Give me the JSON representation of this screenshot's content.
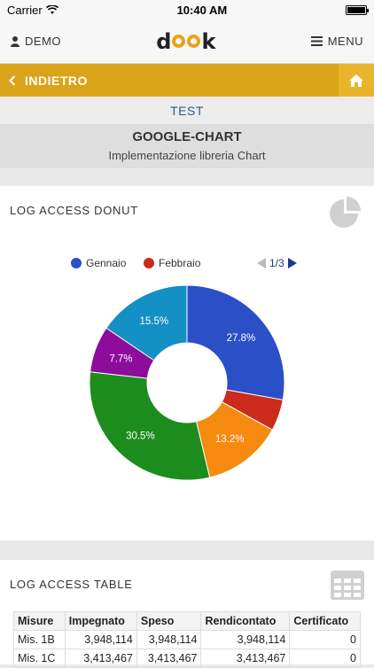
{
  "status_bar": {
    "carrier": "Carrier",
    "time": "10:40 AM"
  },
  "navbar": {
    "user_label": "DEMO",
    "logo_text": "dook",
    "menu_label": "MENU"
  },
  "backbar": {
    "back_label": "INDIETRO"
  },
  "section": {
    "label": "TEST"
  },
  "page": {
    "title": "GOOGLE-CHART",
    "subtitle": "Implementazione libreria Chart"
  },
  "donut_card": {
    "title": "LOG ACCESS DONUT",
    "pager": "1/3"
  },
  "chart_data": {
    "type": "pie",
    "donut": true,
    "legend_position": "top",
    "legend": [
      {
        "name": "Gennaio",
        "color": "#2a4fc7"
      },
      {
        "name": "Febbraio",
        "color": "#cc2a1a"
      }
    ],
    "slices": [
      {
        "value": 27.8,
        "label": "27.8%",
        "color": "#2a4fc7"
      },
      {
        "value": 5.2,
        "label": "",
        "color": "#cc2a1a"
      },
      {
        "value": 13.2,
        "label": "13.2%",
        "color": "#f68a0f"
      },
      {
        "value": 30.5,
        "label": "30.5%",
        "color": "#1c8c1c"
      },
      {
        "value": 7.7,
        "label": "7.7%",
        "color": "#8d0c9c"
      },
      {
        "value": 15.5,
        "label": "15.5%",
        "color": "#1390c4"
      }
    ]
  },
  "table_card": {
    "title": "LOG ACCESS TABLE",
    "columns": [
      "Misure",
      "Impegnato",
      "Speso",
      "Rendicontato",
      "Certificato"
    ],
    "rows": [
      [
        "Mis. 1B",
        "3,948,114",
        "3,948,114",
        "3,948,114",
        "0"
      ],
      [
        "Mis. 1C",
        "3,413,467",
        "3,413,467",
        "3,413,467",
        "0"
      ]
    ]
  },
  "colors": {
    "accent": "#daa41a",
    "section_text": "#2a5b8c"
  },
  "icons": [
    "wifi-icon",
    "battery-icon",
    "user-icon",
    "menu-icon",
    "chevron-left-icon",
    "home-icon",
    "pie-chart-icon",
    "table-grid-icon"
  ]
}
